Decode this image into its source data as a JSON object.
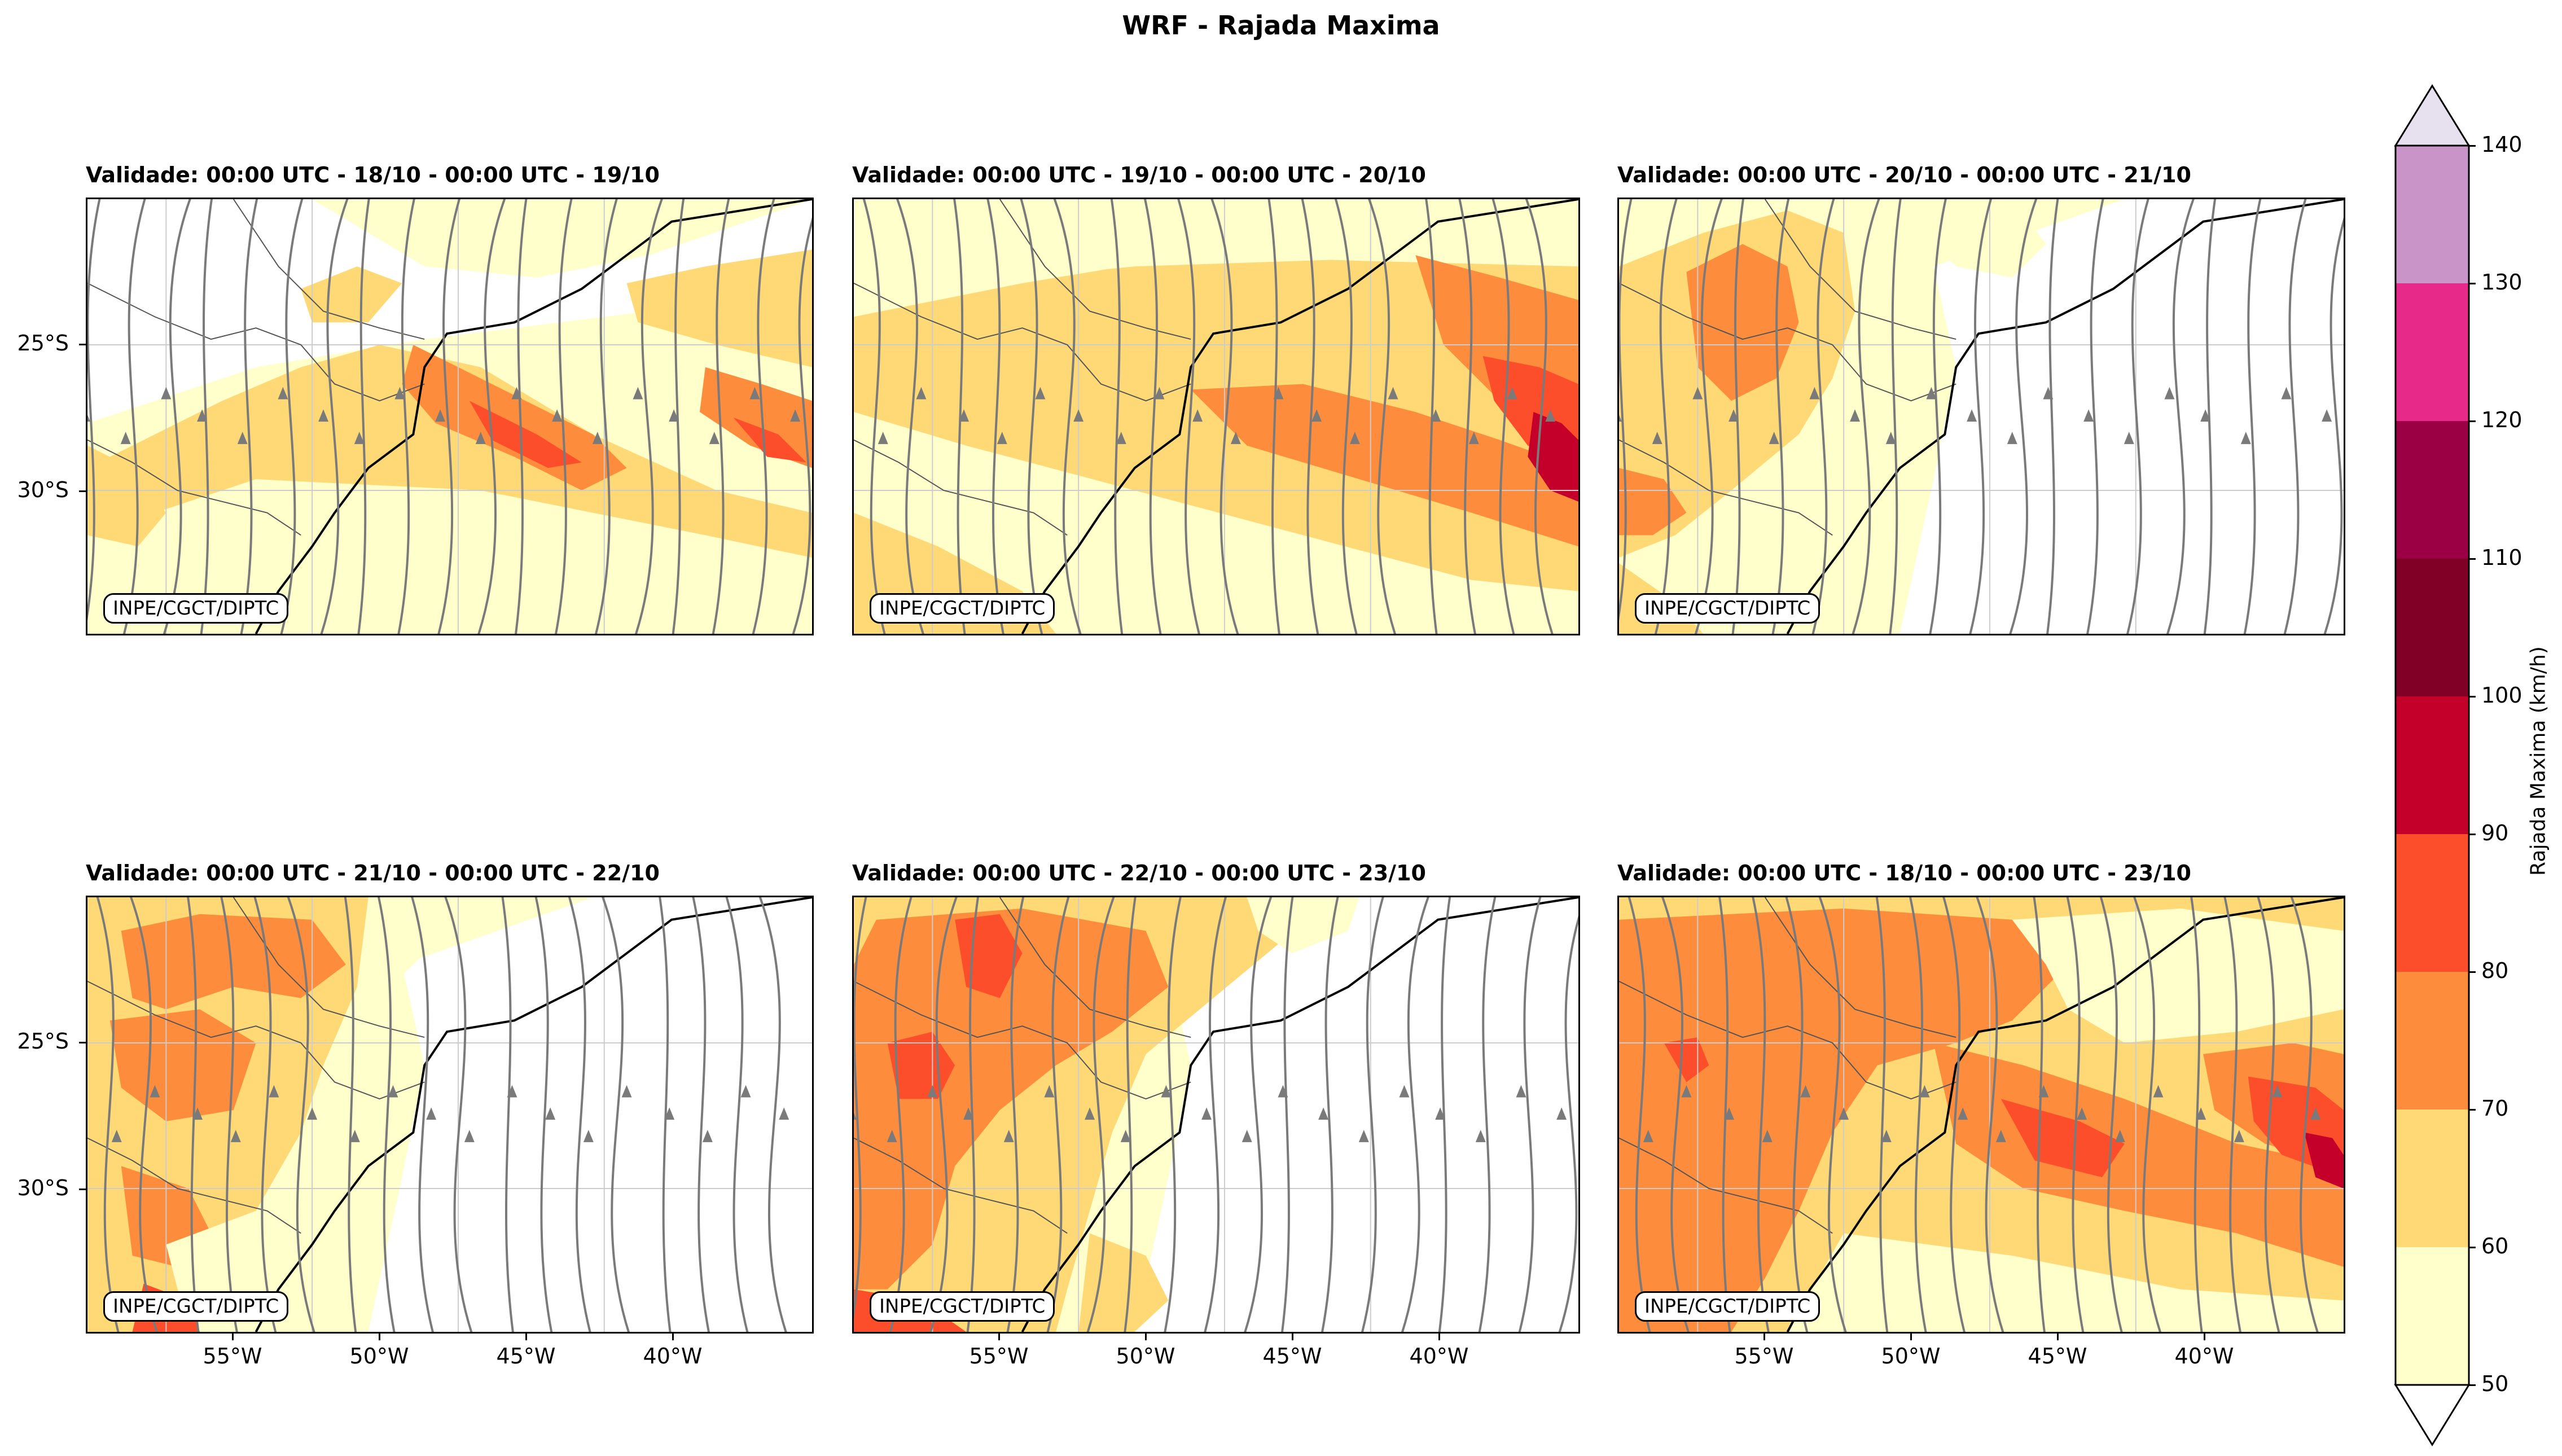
{
  "figure_title": "WRF - Rajada Maxima",
  "credit": "INPE/CGCT/DIPTC",
  "panels": [
    {
      "title": "Validade: 00:00 UTC - 18/10 - 00:00 UTC - 19/10"
    },
    {
      "title": "Validade: 00:00 UTC - 19/10 - 00:00 UTC - 20/10"
    },
    {
      "title": "Validade: 00:00 UTC - 20/10 - 00:00 UTC - 21/10"
    },
    {
      "title": "Validade: 00:00 UTC - 21/10 - 00:00 UTC - 22/10"
    },
    {
      "title": "Validade: 00:00 UTC - 22/10 - 00:00 UTC - 23/10"
    },
    {
      "title": "Validade: 00:00 UTC - 18/10 - 00:00 UTC - 23/10"
    }
  ],
  "axes": {
    "lat_ticks": [
      "25°S",
      "30°S"
    ],
    "lon_ticks": [
      "55°W",
      "50°W",
      "45°W",
      "40°W"
    ]
  },
  "colorbar": {
    "label": "Rajada Maxima (km/h)",
    "ticks": [
      "50",
      "60",
      "70",
      "80",
      "90",
      "100",
      "110",
      "120",
      "130",
      "140"
    ],
    "colors": [
      "#ffffcc",
      "#fed976",
      "#fd8d3c",
      "#fc4e2a",
      "#c4002a",
      "#800026",
      "#9b0045",
      "#e7298a",
      "#c994c7",
      "#e7e1ef"
    ]
  },
  "streamline_color": "#7a7a7a"
}
